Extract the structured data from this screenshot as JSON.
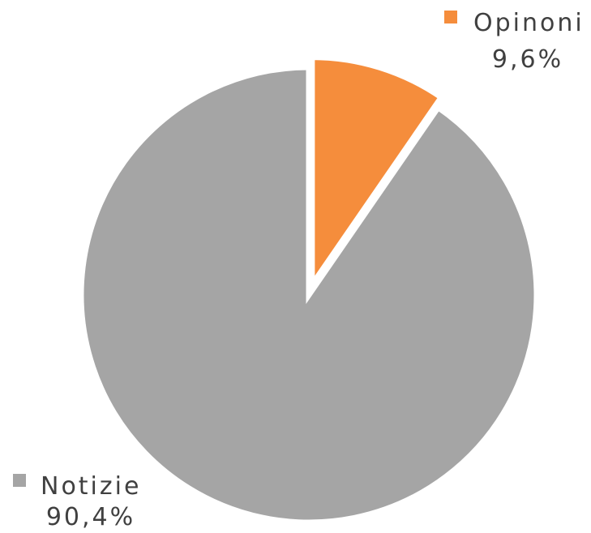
{
  "chart_data": {
    "type": "pie",
    "slices": [
      {
        "name": "Opinoni",
        "value": 9.6,
        "value_label": "9,6%",
        "color": "#F58D3C",
        "exploded": true
      },
      {
        "name": "Notizie",
        "value": 90.4,
        "value_label": "90,4%",
        "color": "#A5A5A5",
        "exploded": false
      }
    ],
    "start_angle": "12 o'clock",
    "direction": "clockwise",
    "legend": "none",
    "data_labels": "outside, category name with legend key and percentage"
  }
}
